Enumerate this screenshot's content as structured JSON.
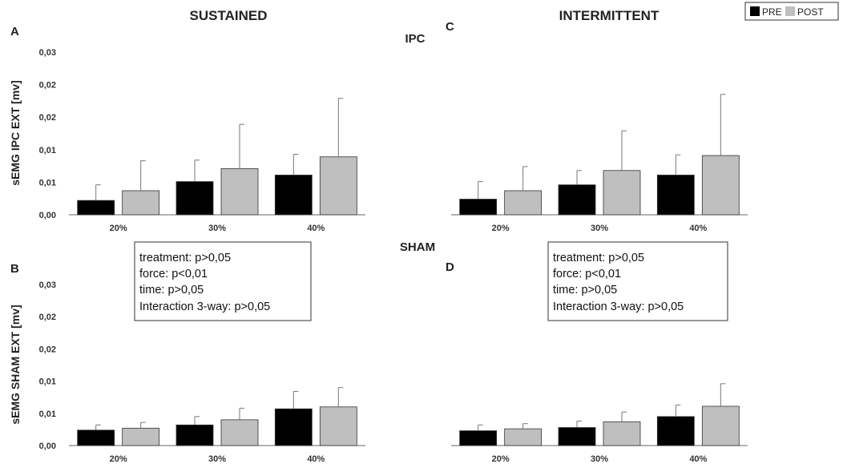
{
  "figure": {
    "col_titles": [
      "SUSTAINED",
      "INTERMITTENT"
    ],
    "row_titles": [
      "IPC",
      "SHAM"
    ],
    "legend": [
      {
        "label": "PRE",
        "color": "#000000"
      },
      {
        "label": "POST",
        "color": "#bfbfbf"
      }
    ],
    "stats_box": [
      "treatment: p>0,05",
      "force: p<0,01",
      "time: p>0,05",
      "Interaction 3-way: p>0,05"
    ]
  },
  "chart_data": [
    {
      "panel": "A",
      "type": "bar",
      "column": "SUSTAINED",
      "row": "IPC",
      "categories": [
        "20%",
        "30%",
        "40%"
      ],
      "ylabel": "sEMG IPC EXT  [mv]",
      "ytick_labels": [
        "0,00",
        "0,01",
        "0,01",
        "0,02",
        "0,02",
        "0,03"
      ],
      "ylim": [
        0,
        0.025
      ],
      "series": [
        {
          "name": "PRE",
          "values": [
            0.0022,
            0.0051,
            0.0061
          ],
          "errors": [
            0.0024,
            0.0033,
            0.0032
          ]
        },
        {
          "name": "POST",
          "values": [
            0.0037,
            0.0071,
            0.0089
          ],
          "errors": [
            0.0046,
            0.0068,
            0.009
          ]
        }
      ]
    },
    {
      "panel": "C",
      "type": "bar",
      "column": "INTERMITTENT",
      "row": "IPC",
      "categories": [
        "20%",
        "30%",
        "40%"
      ],
      "ylabel": "",
      "ytick_labels": [],
      "ylim": [
        0,
        0.025
      ],
      "series": [
        {
          "name": "PRE",
          "values": [
            0.0024,
            0.0046,
            0.0061
          ],
          "errors": [
            0.0027,
            0.0022,
            0.0031
          ]
        },
        {
          "name": "POST",
          "values": [
            0.0037,
            0.0068,
            0.0091
          ],
          "errors": [
            0.0037,
            0.0061,
            0.0094
          ]
        }
      ]
    },
    {
      "panel": "B",
      "type": "bar",
      "column": "SUSTAINED",
      "row": "SHAM",
      "categories": [
        "20%",
        "30%",
        "40%"
      ],
      "ylabel": "sEMG SHAM EXT  [mv]",
      "ytick_labels": [
        "0,00",
        "0,01",
        "0,01",
        "0,02",
        "0,02",
        "0,03"
      ],
      "ylim": [
        0,
        0.025
      ],
      "series": [
        {
          "name": "PRE",
          "values": [
            0.0024,
            0.0032,
            0.0057
          ],
          "errors": [
            0.0008,
            0.0013,
            0.0027
          ]
        },
        {
          "name": "POST",
          "values": [
            0.0027,
            0.004,
            0.006
          ],
          "errors": [
            0.0009,
            0.0018,
            0.003
          ]
        }
      ]
    },
    {
      "panel": "D",
      "type": "bar",
      "column": "INTERMITTENT",
      "row": "SHAM",
      "categories": [
        "20%",
        "30%",
        "40%"
      ],
      "ylabel": "",
      "ytick_labels": [],
      "ylim": [
        0,
        0.025
      ],
      "series": [
        {
          "name": "PRE",
          "values": [
            0.0023,
            0.0028,
            0.0045
          ],
          "errors": [
            0.0009,
            0.001,
            0.0018
          ]
        },
        {
          "name": "POST",
          "values": [
            0.0026,
            0.0037,
            0.0061
          ],
          "errors": [
            0.0008,
            0.0015,
            0.0035
          ]
        }
      ]
    }
  ]
}
